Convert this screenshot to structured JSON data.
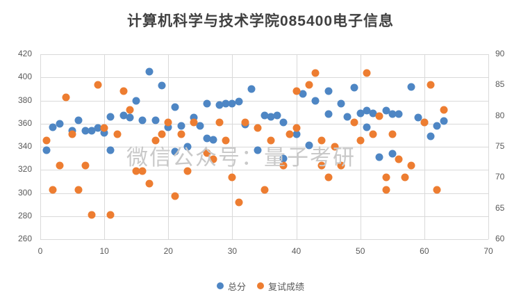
{
  "title": "计算机科学与技术学院085400电子信息",
  "watermark": "微信公众号：量子考研",
  "colors": {
    "blue_series": "#4e86c4",
    "orange_series": "#ed7d31",
    "gridline": "#d9d9d9",
    "axis_text": "#595959",
    "title_text": "#404040",
    "watermark_text": "#c9c9c9"
  },
  "legend": {
    "items": [
      {
        "label": "总分",
        "color": "#4e86c4"
      },
      {
        "label": "复试成绩",
        "color": "#ed7d31"
      }
    ]
  },
  "chart_data": {
    "type": "scatter",
    "title": "计算机科学与技术学院085400电子信息",
    "xlabel": "",
    "ylabel_left": "",
    "ylabel_right": "",
    "grid": true,
    "legend_position": "bottom",
    "x_axis": {
      "min": 0,
      "max": 70,
      "ticks": [
        0,
        10,
        20,
        30,
        40,
        50,
        60,
        70
      ]
    },
    "y_axis_left": {
      "min": 260,
      "max": 420,
      "ticks": [
        420,
        400,
        380,
        360,
        340,
        320,
        300,
        280,
        260
      ],
      "used_by": "总分"
    },
    "y_axis_right": {
      "min": 60,
      "max": 90,
      "ticks": [
        90,
        85,
        80,
        75,
        70,
        65,
        60
      ],
      "used_by": "复试成绩"
    },
    "series": [
      {
        "name": "总分",
        "axis": "left",
        "color": "#4e86c4",
        "points": [
          [
            1,
            337
          ],
          [
            2,
            357
          ],
          [
            3,
            360
          ],
          [
            5,
            354
          ],
          [
            6,
            363
          ],
          [
            7,
            354
          ],
          [
            8,
            354
          ],
          [
            9,
            356
          ],
          [
            10,
            352
          ],
          [
            11,
            337
          ],
          [
            11,
            366
          ],
          [
            13,
            367
          ],
          [
            14,
            365
          ],
          [
            15,
            380
          ],
          [
            16,
            363
          ],
          [
            17,
            405
          ],
          [
            18,
            363
          ],
          [
            19,
            393
          ],
          [
            20,
            357
          ],
          [
            21,
            374
          ],
          [
            21,
            336
          ],
          [
            22,
            358
          ],
          [
            23,
            340
          ],
          [
            24,
            365
          ],
          [
            25,
            358
          ],
          [
            26,
            377
          ],
          [
            26,
            347
          ],
          [
            27,
            346
          ],
          [
            28,
            376
          ],
          [
            29,
            377
          ],
          [
            30,
            377
          ],
          [
            31,
            379
          ],
          [
            32,
            359
          ],
          [
            33,
            390
          ],
          [
            34,
            337
          ],
          [
            35,
            367
          ],
          [
            36,
            366
          ],
          [
            37,
            367
          ],
          [
            38,
            361
          ],
          [
            38,
            330
          ],
          [
            40,
            351
          ],
          [
            41,
            386
          ],
          [
            42,
            341
          ],
          [
            43,
            380
          ],
          [
            45,
            388
          ],
          [
            45,
            368
          ],
          [
            47,
            377
          ],
          [
            48,
            366
          ],
          [
            49,
            391
          ],
          [
            50,
            369
          ],
          [
            51,
            357
          ],
          [
            51,
            371
          ],
          [
            52,
            369
          ],
          [
            53,
            331
          ],
          [
            54,
            371
          ],
          [
            55,
            334
          ],
          [
            55,
            368
          ],
          [
            56,
            368
          ],
          [
            58,
            392
          ],
          [
            59,
            365
          ],
          [
            60,
            361
          ],
          [
            61,
            349
          ],
          [
            62,
            358
          ],
          [
            63,
            362
          ]
        ]
      },
      {
        "name": "复试成绩",
        "axis": "right",
        "color": "#ed7d31",
        "points": [
          [
            1,
            76
          ],
          [
            2,
            68
          ],
          [
            3,
            72
          ],
          [
            4,
            83
          ],
          [
            5,
            77
          ],
          [
            6,
            68
          ],
          [
            7,
            72
          ],
          [
            8,
            64
          ],
          [
            9,
            85
          ],
          [
            10,
            78
          ],
          [
            11,
            64
          ],
          [
            12,
            77
          ],
          [
            13,
            84
          ],
          [
            14,
            81
          ],
          [
            15,
            71
          ],
          [
            16,
            71
          ],
          [
            17,
            69
          ],
          [
            18,
            76
          ],
          [
            19,
            77
          ],
          [
            20,
            79
          ],
          [
            21,
            67
          ],
          [
            22,
            77
          ],
          [
            23,
            71
          ],
          [
            24,
            79
          ],
          [
            26,
            74
          ],
          [
            27,
            73
          ],
          [
            28,
            79
          ],
          [
            29,
            76
          ],
          [
            30,
            70
          ],
          [
            31,
            66
          ],
          [
            32,
            79
          ],
          [
            34,
            78
          ],
          [
            35,
            68
          ],
          [
            36,
            76
          ],
          [
            38,
            72
          ],
          [
            39,
            77
          ],
          [
            40,
            84
          ],
          [
            40,
            78
          ],
          [
            42,
            85
          ],
          [
            43,
            87
          ],
          [
            44,
            72
          ],
          [
            44,
            76
          ],
          [
            45,
            70
          ],
          [
            46,
            75
          ],
          [
            47,
            72
          ],
          [
            49,
            79
          ],
          [
            50,
            76
          ],
          [
            51,
            87
          ],
          [
            52,
            77
          ],
          [
            53,
            80
          ],
          [
            54,
            70
          ],
          [
            54,
            68
          ],
          [
            55,
            77
          ],
          [
            56,
            73
          ],
          [
            57,
            70
          ],
          [
            58,
            72
          ],
          [
            60,
            79
          ],
          [
            61,
            85
          ],
          [
            62,
            68
          ],
          [
            63,
            81
          ]
        ]
      }
    ]
  }
}
